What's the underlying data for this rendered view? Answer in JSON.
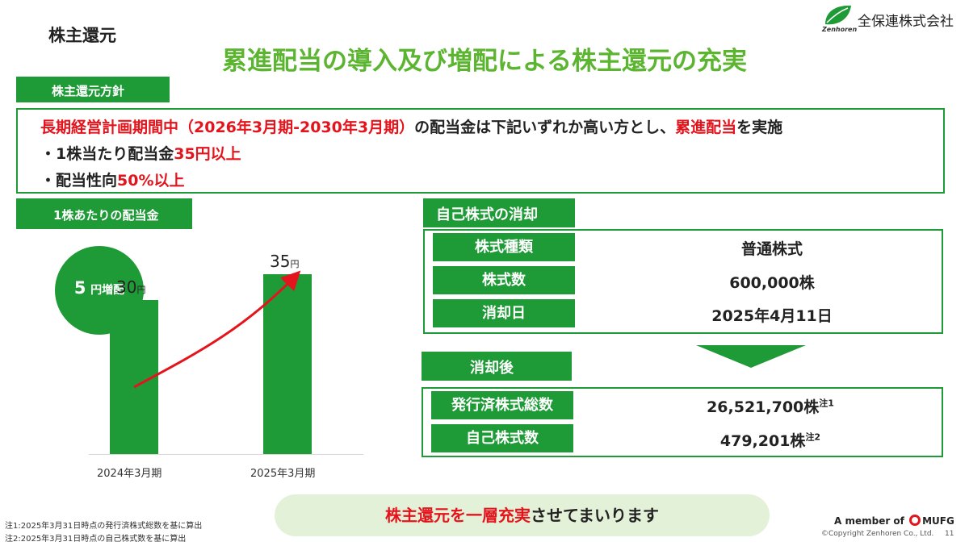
{
  "header": {
    "section_title": "株主還元",
    "company_logo_sub": "Zenhoren",
    "company_name": "全保連株式会社",
    "main_title": "累進配当の導入及び増配による株主還元の充実"
  },
  "policy": {
    "tab_label": "株主還元方針",
    "line1_red": "長期経営計画期間中（2026年3月期-2030年3月期）",
    "line1_mid": "の配当金は下記いずれか高い方とし、",
    "line1_red2": "累進配当",
    "line1_end": "を実施",
    "line2_prefix": "・1株当たり配当金",
    "line2_red": "35円以上",
    "line3_prefix": "・配当性向",
    "line3_red": "50%以上"
  },
  "dps": {
    "tab_label": "1株あたりの配当金",
    "increase_number": "5",
    "increase_label": "円増配",
    "unit": "円"
  },
  "chart_data": {
    "type": "bar",
    "categories": [
      "2024年3月期",
      "2025年3月期"
    ],
    "values": [
      30,
      35
    ],
    "labels": [
      "30",
      "35"
    ],
    "title": "",
    "xlabel": "",
    "ylabel": "",
    "colors": {
      "bar": "#1e9a36",
      "arrow": "#e4141c"
    }
  },
  "buyback": {
    "tab_label": "自己株式の消却",
    "rows": [
      {
        "label": "株式種類",
        "value": "普通株式"
      },
      {
        "label": "株式数",
        "value": "600,000株"
      },
      {
        "label": "消却日",
        "value": "2025年4月11日"
      }
    ]
  },
  "after": {
    "tab_label": "消却後",
    "rows": [
      {
        "label": "発行済株式総数",
        "value": "26,521,700株",
        "note": "注1"
      },
      {
        "label": "自己株式数",
        "value": "479,201株",
        "note": "注2"
      }
    ]
  },
  "banner": {
    "red_text": "株主還元を一層充実",
    "rest_text": "させてまいります"
  },
  "footer": {
    "note1": "注1:2025年3月31日時点の発行済株式総数を基に算出",
    "note2": "注2:2025年3月31日時点の自己株式数を基に算出",
    "member_prefix": "A member of",
    "member_brand": "MUFG",
    "copyright": "©Copyright Zenhoren Co., Ltd.",
    "page_number": "11"
  },
  "colors": {
    "brand_green": "#1e9a36",
    "title_green": "#5cb531",
    "accent_red": "#e4141c",
    "banner_bg": "#e4f1d9"
  }
}
